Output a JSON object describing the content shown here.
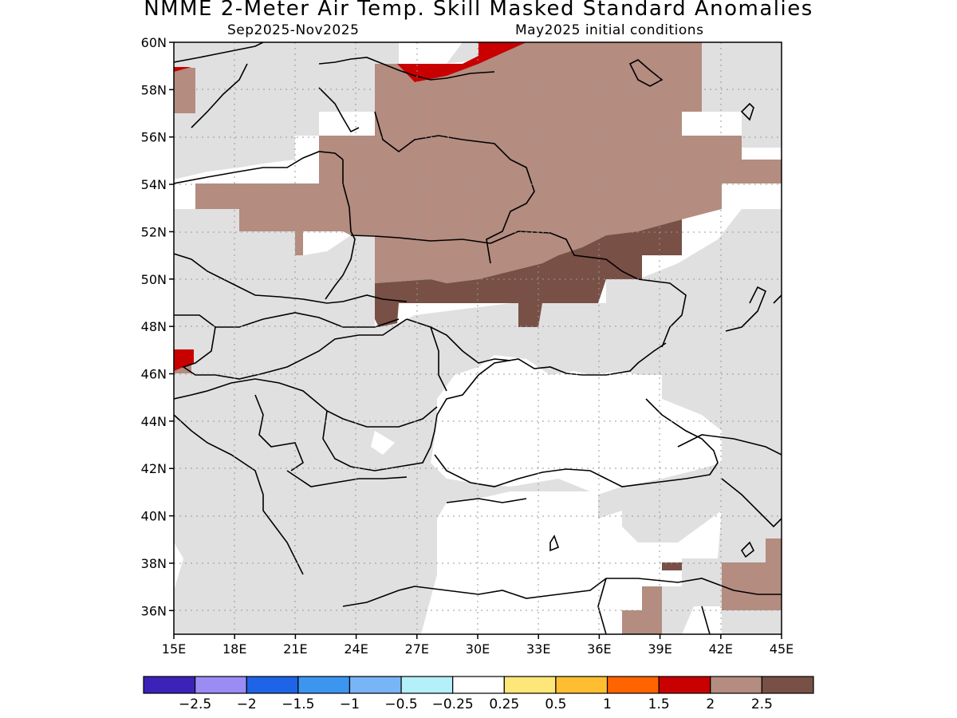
{
  "title": "NMME 2-Meter Air Temp. Skill Masked Standard Anomalies",
  "subtitle_left": "Sep2025-Nov2025",
  "subtitle_right": "May2025 initial conditions",
  "map": {
    "lon_range": [
      15,
      45
    ],
    "lat_range": [
      35,
      60
    ],
    "lon_ticks": [
      "15E",
      "18E",
      "21E",
      "24E",
      "27E",
      "30E",
      "33E",
      "36E",
      "39E",
      "42E",
      "45E"
    ],
    "lat_ticks": [
      "60N",
      "58N",
      "56N",
      "54N",
      "52N",
      "50N",
      "48N",
      "46N",
      "44N",
      "42N",
      "40N",
      "38N",
      "36N"
    ],
    "gridlines": "dotted",
    "masked_color": "#e0e0e0",
    "sea_color": "#ffffff"
  },
  "colorbar": {
    "colors": [
      "#3c22b8",
      "#9a8cf4",
      "#1e64e6",
      "#3c96f0",
      "#78b4f6",
      "#b4f0fa",
      "#ffffff",
      "#ffe678",
      "#ffbe32",
      "#ff6400",
      "#c80000",
      "#b48c80",
      "#785046"
    ],
    "labels": [
      "-2.5",
      "-2",
      "-1.5",
      "-1",
      "-0.5",
      "-0.25",
      "0.25",
      "0.5",
      "1",
      "1.5",
      "2",
      "2.5"
    ]
  }
}
